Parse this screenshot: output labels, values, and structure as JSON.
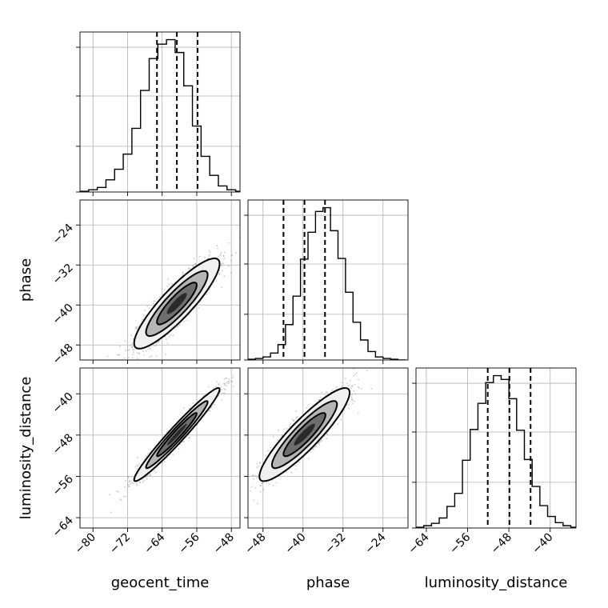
{
  "chart_data": {
    "type": "corner",
    "parameters": [
      {
        "name": "geocent_time",
        "range": [
          -83,
          -46
        ],
        "ticks": [
          -80,
          -72,
          -64,
          -56,
          -48
        ],
        "tick_labels": [
          "−80",
          "−72",
          "−64",
          "−56",
          "−48"
        ],
        "quantiles": [
          -65.2,
          -60.6,
          -55.8
        ]
      },
      {
        "name": "phase",
        "range": [
          -51,
          -19
        ],
        "ticks": [
          -48,
          -40,
          -32,
          -24
        ],
        "tick_labels": [
          "−48",
          "−40",
          "−32",
          "−24"
        ],
        "quantiles": [
          -43.9,
          -39.7,
          -35.6
        ]
      },
      {
        "name": "luminosity_distance",
        "range": [
          -66,
          -35
        ],
        "ticks": [
          -64,
          -56,
          -48,
          -40
        ],
        "tick_labels": [
          "−64",
          "−56",
          "−48",
          "−40"
        ],
        "quantiles": [
          -52.1,
          -47.9,
          -43.8
        ]
      }
    ],
    "histograms": [
      {
        "param": "geocent_time",
        "bin_edges": [
          -83,
          -81,
          -79,
          -77,
          -75,
          -73,
          -71,
          -69,
          -67,
          -65,
          -63,
          -61,
          -59,
          -57,
          -55,
          -53,
          -51,
          -49,
          -47,
          -45
        ],
        "counts": [
          1,
          3,
          6,
          16,
          30,
          50,
          84,
          134,
          176,
          195,
          201,
          184,
          140,
          87,
          47,
          22,
          8,
          3,
          1
        ]
      },
      {
        "param": "phase",
        "bin_edges": [
          -51,
          -49.5,
          -48,
          -46.5,
          -45,
          -43.5,
          -42,
          -40.5,
          -39,
          -37.5,
          -36,
          -34.5,
          -33,
          -31.5,
          -30,
          -28.5,
          -27,
          -25.5,
          -24,
          -22.5,
          -21,
          -19.5
        ],
        "counts": [
          1,
          2,
          4,
          9,
          20,
          46,
          83,
          131,
          166,
          193,
          198,
          168,
          132,
          88,
          49,
          26,
          11,
          4,
          2,
          1,
          0
        ]
      },
      {
        "param": "luminosity_distance",
        "bin_edges": [
          -66,
          -64.5,
          -63,
          -61.5,
          -60,
          -58.5,
          -57,
          -55.5,
          -54,
          -52.5,
          -51,
          -49.5,
          -48,
          -46.5,
          -45,
          -43.5,
          -42,
          -40.5,
          -39,
          -37.5,
          -36,
          -34.5
        ],
        "counts": [
          1,
          3,
          6,
          13,
          28,
          45,
          88,
          128,
          162,
          189,
          198,
          193,
          168,
          127,
          89,
          54,
          29,
          15,
          7,
          3,
          1
        ]
      }
    ],
    "pairs": [
      {
        "x": "geocent_time",
        "y": "phase",
        "center": [
          -60.6,
          -39.7
        ],
        "sigma": [
          4.6,
          4.2
        ],
        "rho": 0.88
      },
      {
        "x": "geocent_time",
        "y": "luminosity_distance",
        "center": [
          -60.6,
          -47.9
        ],
        "sigma": [
          4.6,
          4.2
        ],
        "rho": 0.97
      },
      {
        "x": "phase",
        "y": "luminosity_distance",
        "center": [
          -39.7,
          -47.9
        ],
        "sigma": [
          4.2,
          4.2
        ],
        "rho": 0.9
      }
    ],
    "grid": true
  }
}
